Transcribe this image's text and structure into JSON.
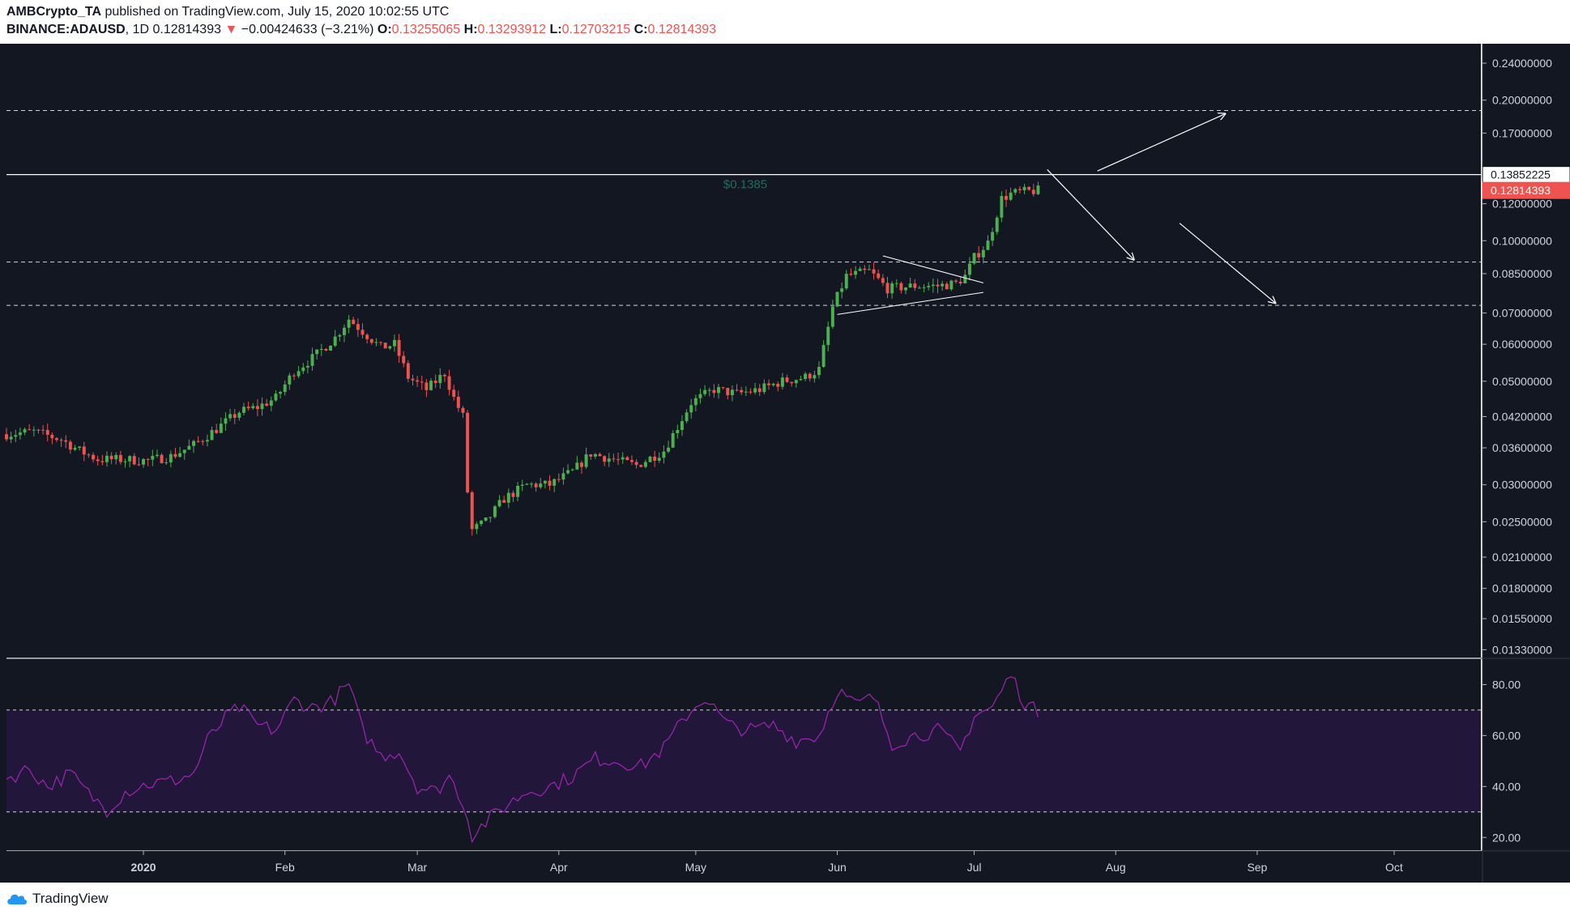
{
  "header": {
    "author": "AMBCrypto_TA",
    "published_text": " published on TradingView.com, July 15, 2020 10:02:55 UTC",
    "symbol": "BINANCE:ADAUSD",
    "interval": ", 1D ",
    "last_price": "0.12814393",
    "change_arrow": "▼",
    "change": "−0.00424633 (−3.21%)",
    "o_label": "O:",
    "o_value": "0.13255065",
    "h_label": "H:",
    "h_value": "0.13293912",
    "l_label": "L:",
    "l_value": "0.12703215",
    "c_label": "C:",
    "c_value": "0.12814393"
  },
  "footer": {
    "brand": "TradingView"
  },
  "colors": {
    "background": "#131722",
    "up": "#26a69a",
    "up_candle": "#4caf50",
    "down": "#ef5350",
    "rsi_line": "#9c27b0",
    "rsi_band": "#22173a",
    "annotation": "#ffffff",
    "price_label_text": "#1e6e5a"
  },
  "chart_data": [
    {
      "type": "candlestick",
      "symbol": "BINANCE:ADAUSD",
      "interval": "1D",
      "y_scale": "log",
      "ylim": [
        0.0128,
        0.26
      ],
      "y_ticks": [
        "0.24000000",
        "0.20000000",
        "0.17000000",
        "0.12000000",
        "0.10000000",
        "0.08500000",
        "0.07000000",
        "0.06000000",
        "0.05000000",
        "0.04200000",
        "0.03600000",
        "0.03000000",
        "0.02500000",
        "0.02100000",
        "0.01800000",
        "0.01550000",
        "0.01330000"
      ],
      "y_tick_values": [
        0.24,
        0.2,
        0.17,
        0.12,
        0.1,
        0.085,
        0.07,
        0.06,
        0.05,
        0.042,
        0.036,
        0.03,
        0.025,
        0.021,
        0.018,
        0.0155,
        0.0133
      ],
      "x_ticks": [
        "2020",
        "Feb",
        "Mar",
        "Apr",
        "May",
        "Jun",
        "Jul",
        "Aug",
        "Sep",
        "Oct"
      ],
      "x_start": "2019-12-02",
      "x_end": "2020-10-20",
      "price_series": {
        "name": "ADAUSD",
        "points": [
          [
            "2019-12-02",
            0.0385
          ],
          [
            "2019-12-08",
            0.039
          ],
          [
            "2019-12-14",
            0.0375
          ],
          [
            "2019-12-18",
            0.0355
          ],
          [
            "2019-12-22",
            0.034
          ],
          [
            "2019-12-27",
            0.034
          ],
          [
            "2020-01-02",
            0.0338
          ],
          [
            "2020-01-07",
            0.0345
          ],
          [
            "2020-01-12",
            0.0365
          ],
          [
            "2020-01-17",
            0.0395
          ],
          [
            "2020-01-22",
            0.043
          ],
          [
            "2020-01-26",
            0.044
          ],
          [
            "2020-01-30",
            0.046
          ],
          [
            "2020-02-03",
            0.0525
          ],
          [
            "2020-02-07",
            0.056
          ],
          [
            "2020-02-12",
            0.062
          ],
          [
            "2020-02-15",
            0.068
          ],
          [
            "2020-02-18",
            0.064
          ],
          [
            "2020-02-22",
            0.059
          ],
          [
            "2020-02-25",
            0.06
          ],
          [
            "2020-02-28",
            0.051
          ],
          [
            "2020-03-03",
            0.048
          ],
          [
            "2020-03-07",
            0.052
          ],
          [
            "2020-03-09",
            0.046
          ],
          [
            "2020-03-11",
            0.042
          ],
          [
            "2020-03-12",
            0.029
          ],
          [
            "2020-03-13",
            0.024
          ],
          [
            "2020-03-16",
            0.025
          ],
          [
            "2020-03-20",
            0.028
          ],
          [
            "2020-03-25",
            0.03
          ],
          [
            "2020-03-30",
            0.03
          ],
          [
            "2020-04-04",
            0.032
          ],
          [
            "2020-04-08",
            0.035
          ],
          [
            "2020-04-13",
            0.034
          ],
          [
            "2020-04-18",
            0.033
          ],
          [
            "2020-04-24",
            0.0355
          ],
          [
            "2020-04-30",
            0.045
          ],
          [
            "2020-05-05",
            0.048
          ],
          [
            "2020-05-10",
            0.047
          ],
          [
            "2020-05-15",
            0.048
          ],
          [
            "2020-05-20",
            0.05
          ],
          [
            "2020-05-25",
            0.051
          ],
          [
            "2020-05-28",
            0.053
          ],
          [
            "2020-05-31",
            0.072
          ],
          [
            "2020-06-03",
            0.084
          ],
          [
            "2020-06-08",
            0.086
          ],
          [
            "2020-06-12",
            0.079
          ],
          [
            "2020-06-18",
            0.08
          ],
          [
            "2020-06-23",
            0.08
          ],
          [
            "2020-06-27",
            0.081
          ],
          [
            "2020-06-29",
            0.084
          ],
          [
            "2020-07-01",
            0.092
          ],
          [
            "2020-07-04",
            0.099
          ],
          [
            "2020-07-07",
            0.123
          ],
          [
            "2020-07-09",
            0.126
          ],
          [
            "2020-07-11",
            0.127
          ],
          [
            "2020-07-15",
            0.1281
          ]
        ]
      },
      "resistance_line": {
        "value": 0.13852225,
        "label": "$0.1385"
      },
      "horizontal_levels": [
        0.19,
        0.09,
        0.0727
      ],
      "price_labels": [
        {
          "text": "0.13852225",
          "value": 0.13852225,
          "style": "white"
        },
        {
          "text": "0.12814393",
          "value": 0.12814393,
          "style": "red"
        }
      ]
    },
    {
      "type": "line",
      "name": "RSI",
      "ylim": [
        15,
        90
      ],
      "y_ticks": [
        "80.00",
        "60.00",
        "40.00",
        "20.00"
      ],
      "y_tick_values": [
        80,
        60,
        40,
        20
      ],
      "band": [
        30,
        70
      ],
      "points": [
        [
          "2019-12-02",
          43
        ],
        [
          "2019-12-07",
          47
        ],
        [
          "2019-12-11",
          40
        ],
        [
          "2019-12-16",
          45
        ],
        [
          "2019-12-20",
          37
        ],
        [
          "2019-12-24",
          31
        ],
        [
          "2019-12-28",
          38
        ],
        [
          "2020-01-02",
          41
        ],
        [
          "2020-01-07",
          42
        ],
        [
          "2020-01-12",
          45
        ],
        [
          "2020-01-15",
          58
        ],
        [
          "2020-01-19",
          67
        ],
        [
          "2020-01-22",
          71
        ],
        [
          "2020-01-26",
          64
        ],
        [
          "2020-01-30",
          62
        ],
        [
          "2020-02-03",
          74
        ],
        [
          "2020-02-07",
          71
        ],
        [
          "2020-02-11",
          73
        ],
        [
          "2020-02-15",
          80
        ],
        [
          "2020-02-18",
          62
        ],
        [
          "2020-02-22",
          52
        ],
        [
          "2020-02-26",
          54
        ],
        [
          "2020-03-01",
          40
        ],
        [
          "2020-03-05",
          38
        ],
        [
          "2020-03-08",
          44
        ],
        [
          "2020-03-11",
          34
        ],
        [
          "2020-03-13",
          21
        ],
        [
          "2020-03-16",
          26
        ],
        [
          "2020-03-20",
          32
        ],
        [
          "2020-03-25",
          38
        ],
        [
          "2020-03-30",
          40
        ],
        [
          "2020-04-04",
          44
        ],
        [
          "2020-04-09",
          51
        ],
        [
          "2020-04-14",
          50
        ],
        [
          "2020-04-19",
          48
        ],
        [
          "2020-04-24",
          55
        ],
        [
          "2020-04-29",
          68
        ],
        [
          "2020-05-03",
          75
        ],
        [
          "2020-05-08",
          64
        ],
        [
          "2020-05-13",
          62
        ],
        [
          "2020-05-18",
          64
        ],
        [
          "2020-05-23",
          58
        ],
        [
          "2020-05-28",
          60
        ],
        [
          "2020-06-01",
          78
        ],
        [
          "2020-06-05",
          72
        ],
        [
          "2020-06-09",
          75
        ],
        [
          "2020-06-13",
          57
        ],
        [
          "2020-06-18",
          60
        ],
        [
          "2020-06-23",
          62
        ],
        [
          "2020-06-28",
          54
        ],
        [
          "2020-07-01",
          68
        ],
        [
          "2020-07-05",
          71
        ],
        [
          "2020-07-09",
          84
        ],
        [
          "2020-07-12",
          73
        ],
        [
          "2020-07-15",
          69
        ]
      ]
    }
  ]
}
